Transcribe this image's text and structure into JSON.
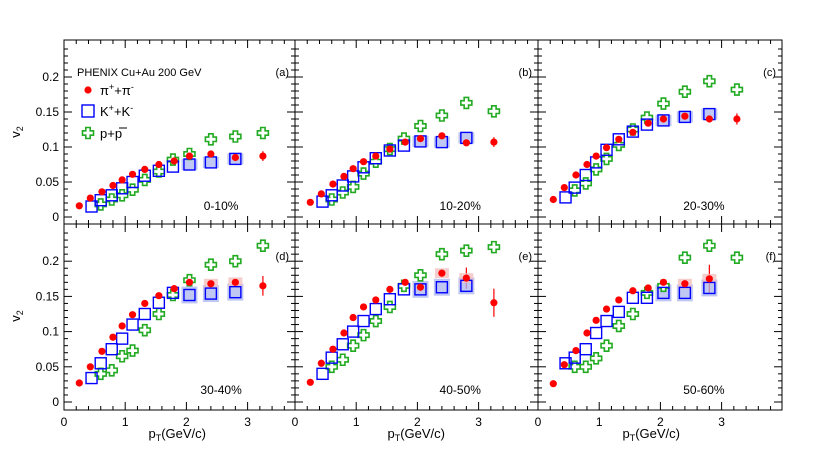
{
  "figure": {
    "experiment_label": "PHENIX Cu+Au 200 GeV",
    "ylabel": "v",
    "ylabel_sub": "2",
    "xlabel": "p",
    "xlabel_sub": "T",
    "xlabel_unit": "(GeV/c)",
    "colors": {
      "pion": "#ff0000",
      "kaon": "#0000ff",
      "proton": "#22aa22",
      "kaon_sys": "#aab4ee",
      "pion_sys": "#f2c0c0"
    },
    "xlim": [
      0,
      3.9
    ],
    "ylim": [
      -0.01,
      0.245
    ],
    "xticks": [
      "0",
      "1",
      "2",
      "3"
    ],
    "yticks": [
      "0",
      "0.05",
      "0.1",
      "0.15",
      "0.2"
    ]
  },
  "legend": [
    {
      "base": "π",
      "sup1": "+",
      "mid": "+π",
      "sup2": "-",
      "symbol": "circle"
    },
    {
      "base": "K",
      "sup1": "+",
      "mid": "+K",
      "sup2": "-",
      "symbol": "square"
    },
    {
      "base": "p+",
      "over": "p",
      "symbol": "cross"
    }
  ],
  "chart_data": [
    {
      "type": "scatter",
      "panel_label": "(a)",
      "centrality": "0-10%",
      "series": [
        {
          "name": "π⁺+π⁻",
          "x": [
            0.25,
            0.43,
            0.62,
            0.8,
            0.95,
            1.12,
            1.32,
            1.55,
            1.8,
            2.05,
            2.4,
            2.8,
            3.25
          ],
          "y": [
            0.016,
            0.027,
            0.036,
            0.045,
            0.053,
            0.061,
            0.068,
            0.075,
            0.08,
            0.087,
            0.09,
            0.085,
            0.087
          ],
          "err": [
            0,
            0,
            0,
            0,
            0,
            0,
            0,
            0,
            0,
            0,
            0,
            0,
            0.007
          ]
        },
        {
          "name": "K⁺+K⁻",
          "x": [
            0.45,
            0.6,
            0.78,
            0.95,
            1.12,
            1.32,
            1.55,
            1.78,
            2.05,
            2.4,
            2.8
          ],
          "y": [
            0.015,
            0.024,
            0.031,
            0.041,
            0.05,
            0.059,
            0.066,
            0.072,
            0.075,
            0.078,
            0.083
          ]
        },
        {
          "name": "p+p̄",
          "x": [
            0.6,
            0.78,
            0.95,
            1.12,
            1.32,
            1.55,
            1.78,
            2.05,
            2.4,
            2.8,
            3.25
          ],
          "y": [
            0.018,
            0.025,
            0.031,
            0.039,
            0.053,
            0.065,
            0.082,
            0.09,
            0.111,
            0.115,
            0.12
          ]
        }
      ]
    },
    {
      "type": "scatter",
      "panel_label": "(b)",
      "centrality": "10-20%",
      "series": [
        {
          "name": "π⁺+π⁻",
          "x": [
            0.25,
            0.43,
            0.62,
            0.8,
            0.95,
            1.12,
            1.32,
            1.55,
            1.8,
            2.05,
            2.4,
            2.8,
            3.25
          ],
          "y": [
            0.021,
            0.033,
            0.047,
            0.058,
            0.069,
            0.079,
            0.087,
            0.097,
            0.107,
            0.112,
            0.116,
            0.106,
            0.107
          ],
          "err": [
            0,
            0,
            0,
            0,
            0,
            0,
            0,
            0,
            0,
            0,
            0,
            0,
            0.007
          ]
        },
        {
          "name": "K⁺+K⁻",
          "x": [
            0.45,
            0.6,
            0.78,
            0.95,
            1.12,
            1.32,
            1.55,
            1.78,
            2.05,
            2.4,
            2.8
          ],
          "y": [
            0.022,
            0.031,
            0.045,
            0.058,
            0.071,
            0.084,
            0.095,
            0.102,
            0.108,
            0.107,
            0.113
          ]
        },
        {
          "name": "p+p̄",
          "x": [
            0.6,
            0.78,
            0.95,
            1.12,
            1.32,
            1.55,
            1.78,
            2.05,
            2.4,
            2.8,
            3.25
          ],
          "y": [
            0.025,
            0.035,
            0.043,
            0.062,
            0.079,
            0.097,
            0.112,
            0.13,
            0.145,
            0.163,
            0.151
          ]
        }
      ]
    },
    {
      "type": "scatter",
      "panel_label": "(c)",
      "centrality": "20-30%",
      "series": [
        {
          "name": "π⁺+π⁻",
          "x": [
            0.25,
            0.43,
            0.62,
            0.8,
            0.95,
            1.12,
            1.32,
            1.55,
            1.8,
            2.05,
            2.4,
            2.8,
            3.25
          ],
          "y": [
            0.025,
            0.042,
            0.06,
            0.075,
            0.087,
            0.099,
            0.111,
            0.121,
            0.134,
            0.14,
            0.144,
            0.14,
            0.14
          ],
          "err": [
            0,
            0,
            0,
            0,
            0,
            0,
            0,
            0,
            0,
            0,
            0,
            0,
            0.008
          ]
        },
        {
          "name": "K⁺+K⁻",
          "x": [
            0.45,
            0.6,
            0.78,
            0.95,
            1.12,
            1.32,
            1.55,
            1.78,
            2.05,
            2.4,
            2.8
          ],
          "y": [
            0.028,
            0.042,
            0.06,
            0.078,
            0.096,
            0.111,
            0.122,
            0.132,
            0.138,
            0.143,
            0.147
          ]
        },
        {
          "name": "p+p̄",
          "x": [
            0.6,
            0.78,
            0.95,
            1.12,
            1.32,
            1.55,
            1.78,
            2.05,
            2.4,
            2.8,
            3.25
          ],
          "y": [
            0.038,
            0.048,
            0.068,
            0.083,
            0.103,
            0.125,
            0.142,
            0.162,
            0.179,
            0.194,
            0.182
          ]
        }
      ]
    },
    {
      "type": "scatter",
      "panel_label": "(d)",
      "centrality": "30-40%",
      "series": [
        {
          "name": "π⁺+π⁻",
          "x": [
            0.25,
            0.43,
            0.62,
            0.8,
            0.95,
            1.12,
            1.32,
            1.55,
            1.8,
            2.05,
            2.4,
            2.8,
            3.25
          ],
          "y": [
            0.027,
            0.05,
            0.072,
            0.092,
            0.108,
            0.124,
            0.14,
            0.151,
            0.161,
            0.17,
            0.168,
            0.17,
            0.165
          ],
          "err": [
            0,
            0,
            0,
            0,
            0,
            0,
            0,
            0,
            0,
            0,
            0,
            0,
            0.014
          ]
        },
        {
          "name": "K⁺+K⁻",
          "x": [
            0.45,
            0.6,
            0.78,
            0.95,
            1.12,
            1.32,
            1.55,
            1.78,
            2.05,
            2.4,
            2.8
          ],
          "y": [
            0.034,
            0.055,
            0.075,
            0.09,
            0.11,
            0.125,
            0.141,
            0.155,
            0.152,
            0.154,
            0.156
          ]
        },
        {
          "name": "p+p̄",
          "x": [
            0.6,
            0.78,
            0.95,
            1.12,
            1.32,
            1.55,
            1.78,
            2.05,
            2.4,
            2.8,
            3.25
          ],
          "y": [
            0.04,
            0.045,
            0.065,
            0.073,
            0.102,
            0.125,
            0.152,
            0.173,
            0.195,
            0.2,
            0.222
          ]
        }
      ]
    },
    {
      "type": "scatter",
      "panel_label": "(e)",
      "centrality": "40-50%",
      "series": [
        {
          "name": "π⁺+π⁻",
          "x": [
            0.25,
            0.43,
            0.62,
            0.8,
            0.95,
            1.12,
            1.32,
            1.55,
            1.8,
            2.05,
            2.4,
            2.8,
            3.25
          ],
          "y": [
            0.028,
            0.055,
            0.075,
            0.098,
            0.12,
            0.135,
            0.145,
            0.16,
            0.17,
            0.163,
            0.183,
            0.176,
            0.141
          ],
          "err": [
            0,
            0,
            0,
            0,
            0,
            0,
            0,
            0,
            0,
            0,
            0.006,
            0.015,
            0.02
          ]
        },
        {
          "name": "K⁺+K⁻",
          "x": [
            0.45,
            0.6,
            0.78,
            0.95,
            1.12,
            1.32,
            1.55,
            1.78,
            2.05,
            2.4,
            2.8
          ],
          "y": [
            0.04,
            0.063,
            0.082,
            0.1,
            0.115,
            0.132,
            0.146,
            0.16,
            0.16,
            0.163,
            0.165
          ]
        },
        {
          "name": "p+p̄",
          "x": [
            0.6,
            0.78,
            0.95,
            1.12,
            1.32,
            1.55,
            1.78,
            2.05,
            2.4,
            2.8,
            3.25
          ],
          "y": [
            0.05,
            0.06,
            0.08,
            0.095,
            0.115,
            0.135,
            0.165,
            0.18,
            0.21,
            0.215,
            0.22
          ]
        }
      ]
    },
    {
      "type": "scatter",
      "panel_label": "(f)",
      "centrality": "50-60%",
      "series": [
        {
          "name": "π⁺+π⁻",
          "x": [
            0.25,
            0.43,
            0.62,
            0.8,
            0.95,
            1.12,
            1.32,
            1.55,
            1.8,
            2.05,
            2.4,
            2.8
          ],
          "y": [
            0.026,
            0.053,
            0.073,
            0.098,
            0.116,
            0.132,
            0.145,
            0.158,
            0.162,
            0.17,
            0.168,
            0.175
          ],
          "err": [
            0,
            0,
            0,
            0,
            0,
            0,
            0,
            0,
            0,
            0,
            0,
            0.02
          ]
        },
        {
          "name": "K⁺+K⁻",
          "x": [
            0.45,
            0.6,
            0.78,
            0.95,
            1.12,
            1.32,
            1.55,
            1.78,
            2.05,
            2.4,
            2.8
          ],
          "y": [
            0.055,
            0.063,
            0.075,
            0.098,
            0.115,
            0.128,
            0.148,
            0.148,
            0.155,
            0.155,
            0.162
          ]
        },
        {
          "name": "p+p̄",
          "x": [
            0.6,
            0.78,
            0.95,
            1.12,
            1.32,
            1.55,
            1.78,
            2.05,
            2.4,
            2.8,
            3.25
          ],
          "y": [
            0.05,
            0.05,
            0.062,
            0.08,
            0.108,
            0.125,
            0.155,
            0.165,
            0.205,
            0.222,
            0.205
          ]
        }
      ]
    }
  ]
}
